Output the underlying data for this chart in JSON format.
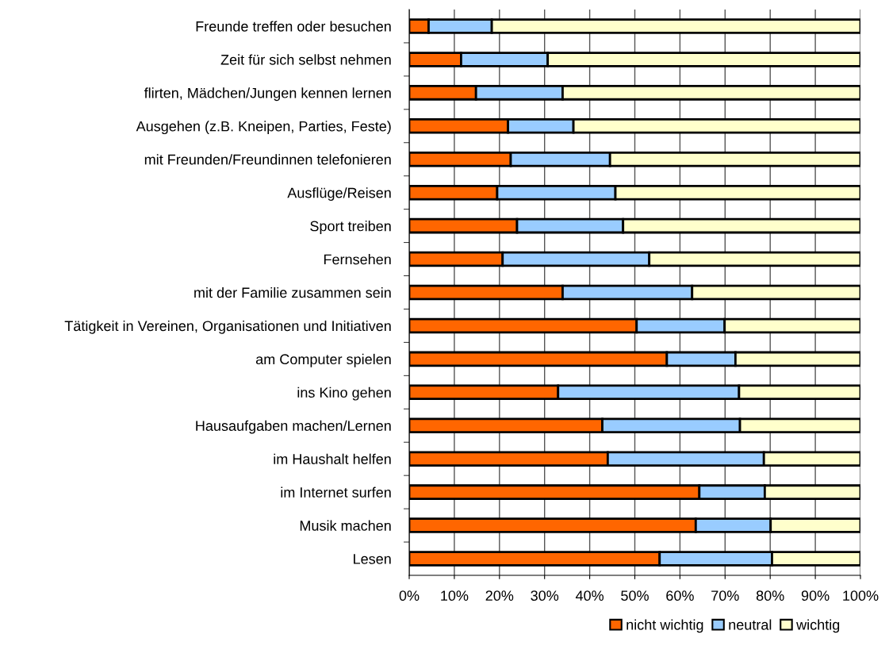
{
  "chart_data": {
    "type": "bar",
    "orientation": "horizontal",
    "stacked": true,
    "categories": [
      "Freunde treffen oder besuchen",
      "Zeit für sich selbst nehmen",
      "flirten, Mädchen/Jungen kennen lernen",
      "Ausgehen (z.B. Kneipen, Parties, Feste)",
      "mit Freunden/Freundinnen telefonieren",
      "Ausflüge/Reisen",
      "Sport treiben",
      "Fernsehen",
      "mit der Familie zusammen sein",
      "Tätigkeit in Vereinen, Organisationen und Initiativen",
      "am Computer spielen",
      "ins Kino gehen",
      "Hausaufgaben machen/Lernen",
      "im Haushalt helfen",
      "im Internet surfen",
      "Musik machen",
      "Lesen"
    ],
    "series": [
      {
        "name": "nicht wichtig",
        "color": "#ff6600",
        "values": [
          4.3,
          11.5,
          14.8,
          21.9,
          22.5,
          19.5,
          23.9,
          20.7,
          34.0,
          50.4,
          57.1,
          33.0,
          42.8,
          44.0,
          64.3,
          63.5,
          55.5
        ]
      },
      {
        "name": "neutral",
        "color": "#99ccff",
        "values": [
          14.0,
          19.2,
          19.2,
          14.5,
          22.0,
          26.2,
          23.5,
          32.5,
          28.7,
          19.5,
          15.2,
          40.1,
          30.5,
          34.6,
          14.5,
          16.6,
          24.9
        ]
      },
      {
        "name": "wichtig",
        "color": "#ffffcc",
        "values": [
          81.7,
          69.3,
          66.0,
          63.6,
          55.5,
          54.3,
          52.6,
          46.8,
          37.3,
          30.1,
          27.7,
          26.9,
          26.7,
          21.4,
          21.2,
          19.9,
          19.6
        ]
      }
    ],
    "xlim": [
      0,
      100
    ],
    "xticks": [
      {
        "value": 0,
        "label": "0%"
      },
      {
        "value": 10,
        "label": "10%"
      },
      {
        "value": 20,
        "label": "20%"
      },
      {
        "value": 30,
        "label": "30%"
      },
      {
        "value": 40,
        "label": "40%"
      },
      {
        "value": 50,
        "label": "50%"
      },
      {
        "value": 60,
        "label": "60%"
      },
      {
        "value": 70,
        "label": "70%"
      },
      {
        "value": 80,
        "label": "80%"
      },
      {
        "value": 90,
        "label": "90%"
      },
      {
        "value": 100,
        "label": "100%"
      }
    ],
    "grid": "x",
    "legend": "bottom"
  }
}
